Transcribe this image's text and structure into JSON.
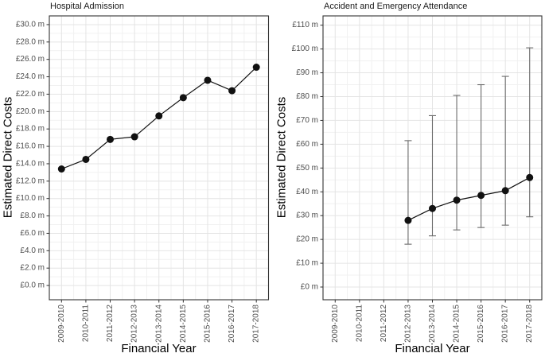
{
  "figure_type": "two-panel line chart with error bars",
  "colors": {
    "background": "#ffffff",
    "panel_border": "#333333",
    "grid_major": "#e4e4e4",
    "grid_minor": "#f1f1f1",
    "tick_mark": "#333333",
    "tick_label": "#4d4d4d",
    "point": "#111111",
    "line": "#111111",
    "error_bar": "#6b6b6b",
    "title_text": "#1a1a1a"
  },
  "chart_data": [
    {
      "type": "line",
      "title": "Hospital Admission",
      "xlabel": "Financial Year",
      "ylabel": "Estimated Direct Costs",
      "legend": "none",
      "grid": true,
      "categories": [
        "2009-2010",
        "2010-2011",
        "2011-2012",
        "2012-2013",
        "2013-2014",
        "2014-2015",
        "2015-2016",
        "2016-2017",
        "2017-2018"
      ],
      "values": [
        13.4,
        14.5,
        16.8,
        17.1,
        19.5,
        21.6,
        23.6,
        22.4,
        25.1
      ],
      "ylim": [
        0,
        30
      ],
      "y_draw_range": [
        -1.64,
        31.0
      ],
      "y_ticks": [
        {
          "value": 0,
          "label": "£0.0 m"
        },
        {
          "value": 2,
          "label": "£2.0 m"
        },
        {
          "value": 4,
          "label": "£4.0 m"
        },
        {
          "value": 6,
          "label": "£6.0 m"
        },
        {
          "value": 8,
          "label": "£8.0 m"
        },
        {
          "value": 10,
          "label": "£10.0 m"
        },
        {
          "value": 12,
          "label": "£12.0 m"
        },
        {
          "value": 14,
          "label": "£14.0 m"
        },
        {
          "value": 16,
          "label": "£16.0 m"
        },
        {
          "value": 18,
          "label": "£18.0 m"
        },
        {
          "value": 20,
          "label": "£20.0 m"
        },
        {
          "value": 22,
          "label": "£22.0 m"
        },
        {
          "value": 24,
          "label": "£24.0 m"
        },
        {
          "value": 26,
          "label": "£26.0 m"
        },
        {
          "value": 28,
          "label": "£28.0 m"
        },
        {
          "value": 30,
          "label": "£30.0 m"
        }
      ]
    },
    {
      "type": "line",
      "error_bars": true,
      "title": "Accident and Emergency Attendance",
      "xlabel": "Financial Year",
      "ylabel": "Estimated Direct Costs",
      "legend": "none",
      "grid": true,
      "categories": [
        "2009-2010",
        "2010-2011",
        "2011-2012",
        "2012-2013",
        "2013-2014",
        "2014-2015",
        "2015-2016",
        "2016-2017",
        "2017-2018"
      ],
      "points": [
        {
          "category": "2012-2013",
          "value": 28,
          "low": 18,
          "high": 61.5
        },
        {
          "category": "2013-2014",
          "value": 33,
          "low": 21.5,
          "high": 72
        },
        {
          "category": "2014-2015",
          "value": 36.5,
          "low": 24,
          "high": 80.5
        },
        {
          "category": "2015-2016",
          "value": 38.5,
          "low": 25,
          "high": 85
        },
        {
          "category": "2016-2017",
          "value": 40.5,
          "low": 26,
          "high": 88.5
        },
        {
          "category": "2017-2018",
          "value": 46,
          "low": 29.5,
          "high": 100.5
        }
      ],
      "ylim": [
        0,
        110
      ],
      "y_draw_range": [
        -5.34,
        113.9
      ],
      "y_ticks": [
        {
          "value": 0,
          "label": "£0 m"
        },
        {
          "value": 10,
          "label": "£10 m"
        },
        {
          "value": 20,
          "label": "£20 m"
        },
        {
          "value": 30,
          "label": "£30 m"
        },
        {
          "value": 40,
          "label": "£40 m"
        },
        {
          "value": 50,
          "label": "£50 m"
        },
        {
          "value": 60,
          "label": "£60 m"
        },
        {
          "value": 70,
          "label": "£70 m"
        },
        {
          "value": 80,
          "label": "£80 m"
        },
        {
          "value": 90,
          "label": "£90 m"
        },
        {
          "value": 100,
          "label": "£100 m"
        },
        {
          "value": 110,
          "label": "£110 m"
        }
      ]
    }
  ]
}
